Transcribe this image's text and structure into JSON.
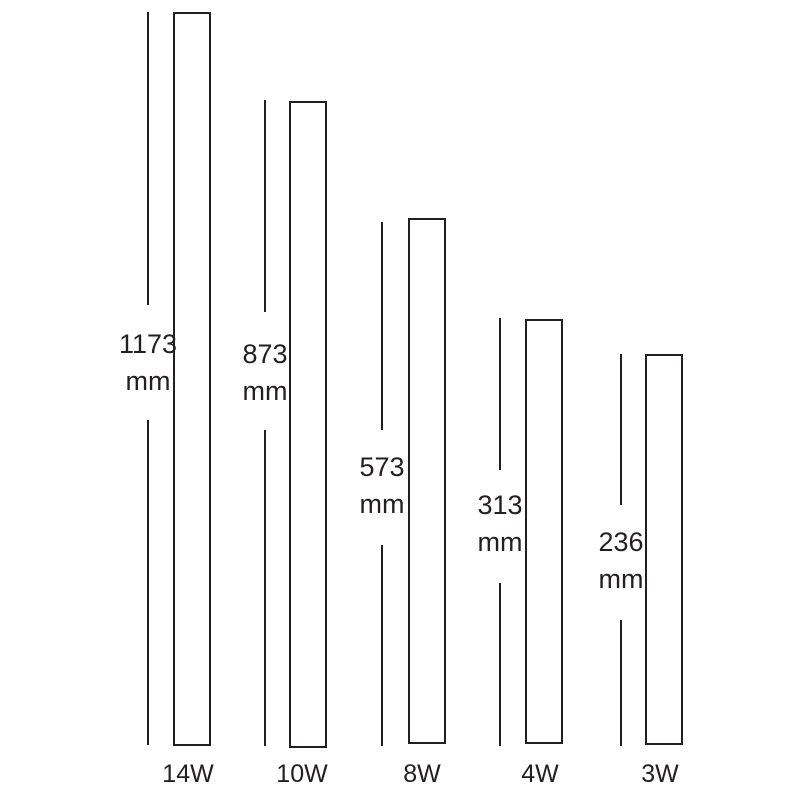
{
  "products": [
    {
      "power": "14W",
      "length": "1173",
      "unit": "mm"
    },
    {
      "power": "10W",
      "length": "873",
      "unit": "mm"
    },
    {
      "power": "8W",
      "length": "573",
      "unit": "mm"
    },
    {
      "power": "4W",
      "length": "313",
      "unit": "mm"
    },
    {
      "power": "3W",
      "length": "236",
      "unit": "mm"
    }
  ],
  "colors": {
    "line": "#231f20",
    "background": "#ffffff"
  }
}
